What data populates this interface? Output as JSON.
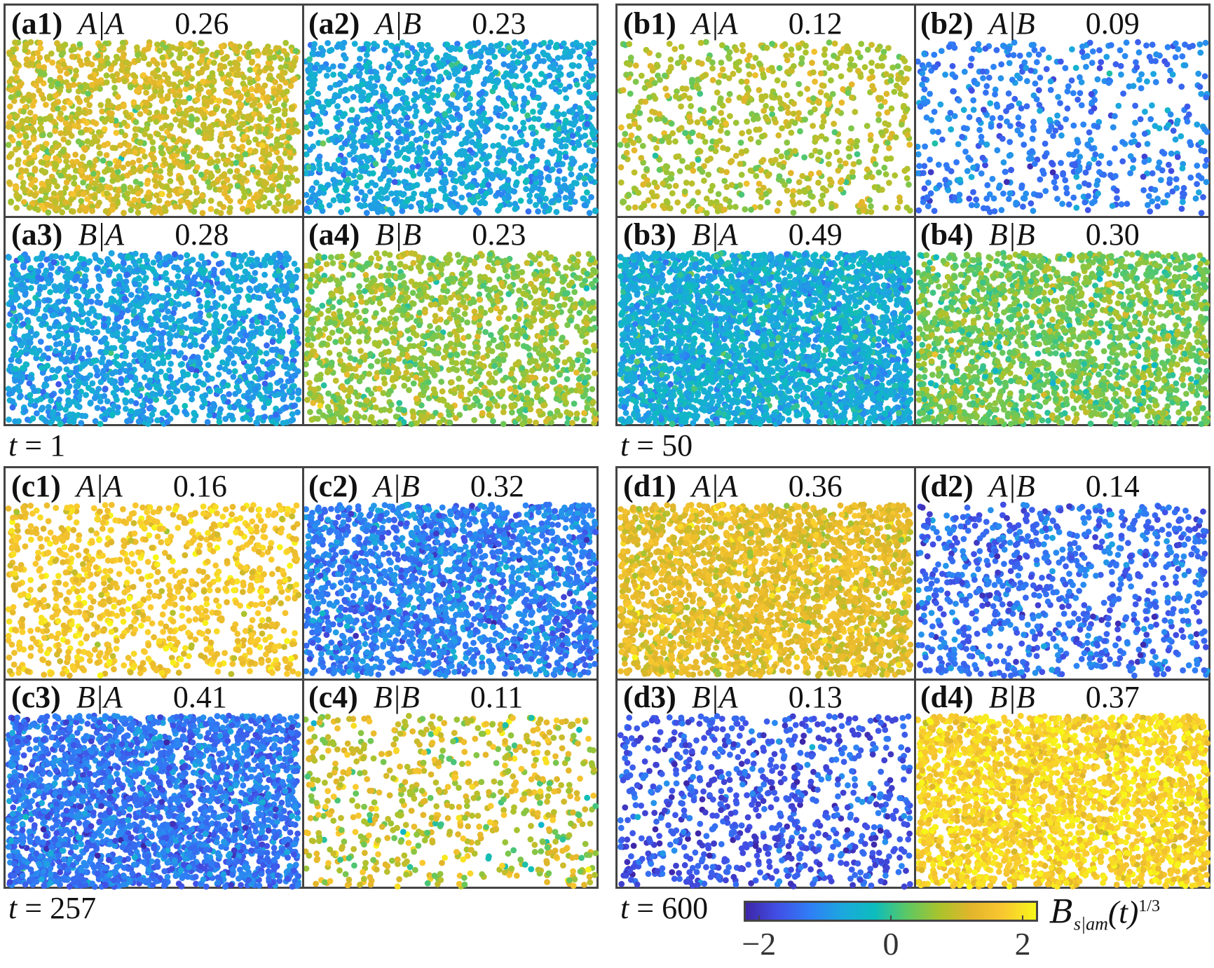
{
  "chart_data": {
    "type": "scatter",
    "groups": [
      {
        "id": "a",
        "time_label": "t",
        "time_value": "1",
        "panels": [
          {
            "id": "(a1)",
            "condition": "A|A",
            "value": "0.26",
            "mean_color_value": 1.0
          },
          {
            "id": "(a2)",
            "condition": "A|B",
            "value": "0.23",
            "mean_color_value": -0.7
          },
          {
            "id": "(a3)",
            "condition": "B|A",
            "value": "0.28",
            "mean_color_value": -0.8
          },
          {
            "id": "(a4)",
            "condition": "B|B",
            "value": "0.23",
            "mean_color_value": 0.6
          }
        ]
      },
      {
        "id": "b",
        "time_label": "t",
        "time_value": "50",
        "panels": [
          {
            "id": "(b1)",
            "condition": "A|A",
            "value": "0.12",
            "mean_color_value": 0.8
          },
          {
            "id": "(b2)",
            "condition": "A|B",
            "value": "0.09",
            "mean_color_value": -1.2
          },
          {
            "id": "(b3)",
            "condition": "B|A",
            "value": "0.49",
            "mean_color_value": -0.6
          },
          {
            "id": "(b4)",
            "condition": "B|B",
            "value": "0.30",
            "mean_color_value": 0.4
          }
        ]
      },
      {
        "id": "c",
        "time_label": "t",
        "time_value": "257",
        "panels": [
          {
            "id": "(c1)",
            "condition": "A|A",
            "value": "0.16",
            "mean_color_value": 1.6
          },
          {
            "id": "(c2)",
            "condition": "A|B",
            "value": "0.32",
            "mean_color_value": -1.2
          },
          {
            "id": "(c3)",
            "condition": "B|A",
            "value": "0.41",
            "mean_color_value": -1.3
          },
          {
            "id": "(c4)",
            "condition": "B|B",
            "value": "0.11",
            "mean_color_value": 1.0
          }
        ]
      },
      {
        "id": "d",
        "time_label": "t",
        "time_value": "600",
        "panels": [
          {
            "id": "(d1)",
            "condition": "A|A",
            "value": "0.36",
            "mean_color_value": 1.3
          },
          {
            "id": "(d2)",
            "condition": "A|B",
            "value": "0.14",
            "mean_color_value": -1.4
          },
          {
            "id": "(d3)",
            "condition": "B|A",
            "value": "0.13",
            "mean_color_value": -1.6
          },
          {
            "id": "(d4)",
            "condition": "B|B",
            "value": "0.37",
            "mean_color_value": 1.8
          }
        ]
      }
    ],
    "colorbar": {
      "label": "B",
      "label_subscript": "s|am",
      "label_suffix": "(t)",
      "label_superscript": "1/3",
      "range": [
        -2.2,
        2.2
      ],
      "ticks": [
        -2,
        0,
        2
      ],
      "tick_labels": [
        "−2",
        "0",
        "2"
      ],
      "colormap": [
        "#3e26a8",
        "#4150e6",
        "#2f7ef6",
        "#1ca8de",
        "#0cbcbd",
        "#5cc863",
        "#a9c32d",
        "#e3b52b",
        "#f9c830",
        "#f7f619"
      ]
    }
  }
}
